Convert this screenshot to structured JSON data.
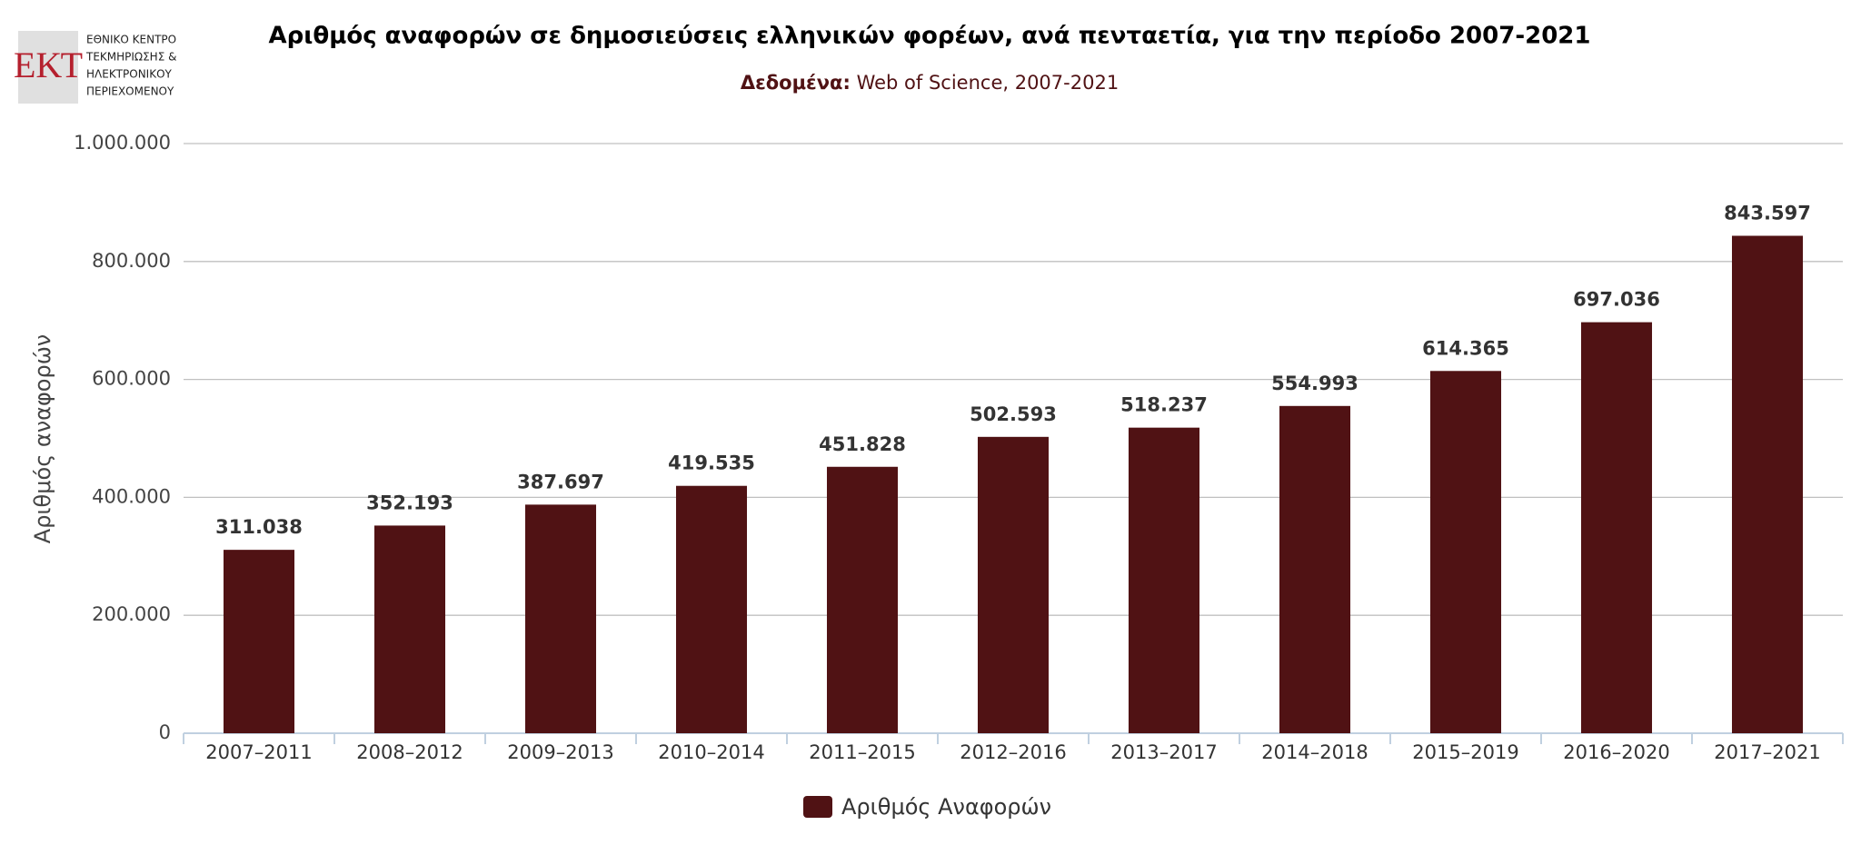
{
  "logo": {
    "mark": "ΕΚΤ",
    "lines": [
      "ΕΘΝΙΚΟ ΚΕΝΤΡΟ",
      "ΤΕΚΜΗΡΙΩΣΗΣ &",
      "ΗΛΕΚΤΡΟΝΙΚΟΥ",
      "ΠΕΡΙΕΧΟΜΕΝΟΥ"
    ]
  },
  "chart_data": {
    "type": "bar",
    "title": "Αριθμός αναφορών σε δημοσιεύσεις ελληνικών φορέων, ανά πενταετία, για την περίοδο 2007-2021",
    "subtitle_label": "Δεδομένα:",
    "subtitle": "Web of Science, 2007-2021",
    "y_label": "Αριθμός αναφορών",
    "categories": [
      "2007–2011",
      "2008–2012",
      "2009–2013",
      "2010–2014",
      "2011–2015",
      "2012–2016",
      "2013–2017",
      "2014–2018",
      "2015–2019",
      "2016–2020",
      "2017–2021"
    ],
    "series": [
      {
        "name": "Αριθμός Αναφορών",
        "color": "#501214",
        "values": [
          311038,
          352193,
          387697,
          419535,
          451828,
          502593,
          518237,
          554993,
          614365,
          697036,
          843597
        ],
        "value_labels": [
          "311.038",
          "352.193",
          "387.697",
          "419.535",
          "451.828",
          "502.593",
          "518.237",
          "554.993",
          "614.365",
          "697.036",
          "843.597"
        ]
      }
    ],
    "ylim": [
      0,
      1000000
    ],
    "yticks": [
      0,
      {
        "value": 200000,
        "label": "200.000"
      },
      {
        "value": 400000,
        "label": "400.000"
      },
      {
        "value": 600000,
        "label": "600.000"
      },
      {
        "value": 800000,
        "label": "800.000"
      },
      {
        "value": 1000000,
        "label": "1.000.000"
      }
    ],
    "grid": true
  }
}
